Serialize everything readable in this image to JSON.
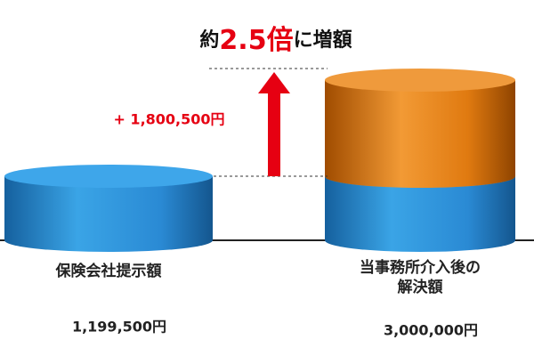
{
  "chart_data": {
    "type": "cylinder",
    "title": {
      "prefix": "約",
      "emphasis": "2.5倍",
      "suffix": "に増額"
    },
    "categories": [
      "保険会社提示額",
      "当事務所介入後の\n解決額"
    ],
    "values": [
      1199500,
      3000000
    ],
    "value_labels": [
      "1,199,500円",
      "3,000,000円"
    ],
    "increase": {
      "value": 1800500,
      "label": "+ 1,800,500円"
    },
    "base_color": "#2a8ad4",
    "increase_color": "#e07a10",
    "emphasis_color": "#e60012",
    "ylim": [
      0,
      3000000
    ]
  }
}
